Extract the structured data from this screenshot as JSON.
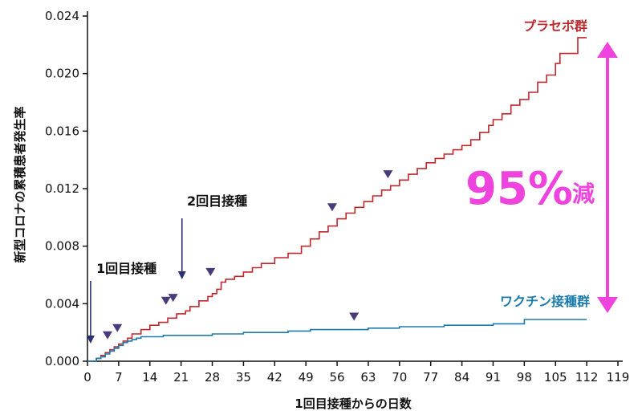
{
  "chart_data": {
    "type": "line",
    "xlabel": "1回目接種からの日数",
    "ylabel": "新型コロナの累積患者発生率",
    "xlim": [
      0,
      119
    ],
    "ylim": [
      0,
      0.024
    ],
    "x_ticks": [
      "0",
      "7",
      "14",
      "21",
      "28",
      "35",
      "42",
      "49",
      "56",
      "63",
      "70",
      "77",
      "84",
      "91",
      "98",
      "105",
      "112",
      "119"
    ],
    "y_ticks": [
      "0.000",
      "0.004",
      "0.008",
      "0.012",
      "0.016",
      "0.020",
      "0.024"
    ],
    "x_tick_values": [
      0,
      7,
      14,
      21,
      28,
      35,
      42,
      49,
      56,
      63,
      70,
      77,
      84,
      91,
      98,
      105,
      112,
      119
    ],
    "y_tick_values": [
      0,
      0.004,
      0.008,
      0.012,
      0.016,
      0.02,
      0.024
    ],
    "series": [
      {
        "name": "プラセボ群",
        "color": "#c0272d",
        "x": [
          0,
          2,
          3,
          4,
          5,
          6,
          7,
          8,
          9,
          10,
          12,
          14,
          16,
          18,
          20,
          22,
          23,
          25,
          27,
          28,
          29,
          30,
          31,
          33,
          35,
          37,
          39,
          42,
          45,
          48,
          50,
          52,
          54,
          56,
          58,
          60,
          62,
          64,
          66,
          68,
          70,
          72,
          74,
          76,
          78,
          80,
          82,
          84,
          86,
          88,
          90,
          91,
          93,
          95,
          97,
          99,
          101,
          103,
          105,
          106,
          108,
          110,
          112
        ],
        "y": [
          0,
          0.0002,
          0.0004,
          0.0006,
          0.0008,
          0.001,
          0.0012,
          0.0014,
          0.0016,
          0.0019,
          0.0022,
          0.0025,
          0.0027,
          0.003,
          0.0033,
          0.0035,
          0.0038,
          0.0042,
          0.0045,
          0.0047,
          0.005,
          0.0055,
          0.0057,
          0.0059,
          0.0062,
          0.0065,
          0.0068,
          0.0072,
          0.0075,
          0.008,
          0.0085,
          0.009,
          0.0094,
          0.0099,
          0.0103,
          0.0107,
          0.0111,
          0.0115,
          0.0119,
          0.0122,
          0.0126,
          0.013,
          0.0134,
          0.0138,
          0.0141,
          0.0144,
          0.0147,
          0.015,
          0.0154,
          0.0159,
          0.0164,
          0.0168,
          0.0172,
          0.0178,
          0.0182,
          0.0187,
          0.0194,
          0.0199,
          0.0207,
          0.0214,
          0.0214,
          0.0225,
          0.0225
        ]
      },
      {
        "name": "ワクチン接種群",
        "color": "#1b7bab",
        "x": [
          0,
          2,
          3,
          4,
          5,
          6,
          7,
          8,
          9,
          10,
          11,
          12,
          14,
          17,
          21,
          28,
          35,
          42,
          45,
          50,
          56,
          63,
          70,
          80,
          91,
          98,
          105,
          112
        ],
        "y": [
          0,
          0.0002,
          0.0003,
          0.0005,
          0.0007,
          0.0009,
          0.0011,
          0.0013,
          0.0014,
          0.0015,
          0.0016,
          0.0017,
          0.0017,
          0.0018,
          0.0018,
          0.0019,
          0.002,
          0.002,
          0.0021,
          0.0022,
          0.0022,
          0.0023,
          0.0024,
          0.0025,
          0.0026,
          0.0029,
          0.0029,
          0.0029
        ]
      }
    ],
    "markers": [
      {
        "x": 4.5,
        "y": 0.0018
      },
      {
        "x": 6.7,
        "y": 0.0023
      },
      {
        "x": 17.6,
        "y": 0.0042
      },
      {
        "x": 19.2,
        "y": 0.0044
      },
      {
        "x": 27.6,
        "y": 0.0062
      },
      {
        "x": 54.9,
        "y": 0.0107
      },
      {
        "x": 59.8,
        "y": 0.0031
      },
      {
        "x": 67.4,
        "y": 0.013
      }
    ],
    "marker_color": "#4a3a7a",
    "annotations": [
      {
        "text": "1回目接種",
        "arrow_day": 0.7
      },
      {
        "text": "2回目接種",
        "arrow_day": 21.2
      }
    ],
    "reduction": {
      "value": "95%",
      "unit": "減",
      "color": "#ee44dd"
    },
    "grid": false,
    "legend": "inline-right"
  }
}
